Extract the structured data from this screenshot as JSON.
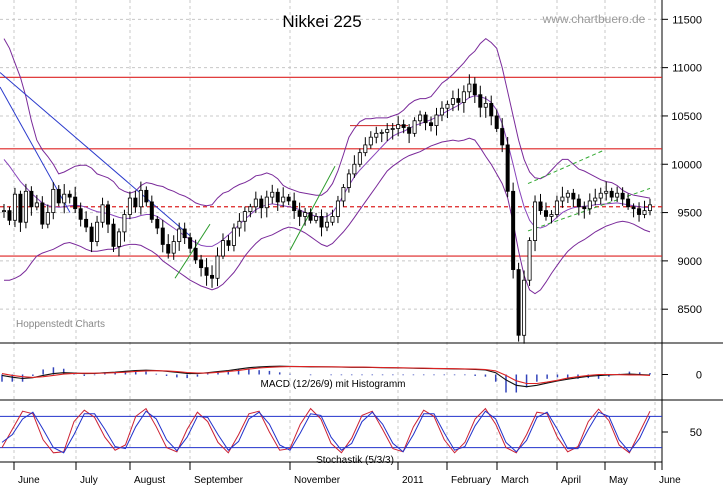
{
  "chart_data": [
    {
      "type": "candlestick",
      "title": "Nikkei 225",
      "watermark": "www.chartbuero.de",
      "source_label": "Hoppenstedt Charts",
      "ylim": [
        8150,
        11700
      ],
      "y_ticks": [
        8500,
        9000,
        9500,
        10000,
        10500,
        11000,
        11500
      ],
      "x_tick_labels": [
        "June",
        "July",
        "August",
        "September",
        "November",
        "2011",
        "February",
        "March",
        "April",
        "May",
        "June"
      ],
      "horizontal_levels": [
        {
          "value": 10900,
          "style": "solid",
          "color": "#dd2222"
        },
        {
          "value": 10160,
          "style": "solid",
          "color": "#dd2222"
        },
        {
          "value": 9560,
          "style": "dashed",
          "color": "#dd2222"
        },
        {
          "value": 9050,
          "style": "solid",
          "color": "#dd2222"
        }
      ],
      "price_series": [
        9520,
        9420,
        9690,
        9400,
        9720,
        9560,
        9600,
        9380,
        9500,
        9740,
        9600,
        9690,
        9660,
        9540,
        9430,
        9350,
        9200,
        9400,
        9580,
        9380,
        9150,
        9300,
        9480,
        9650,
        9560,
        9730,
        9610,
        9430,
        9340,
        9170,
        9080,
        9200,
        9330,
        9240,
        9130,
        9010,
        8930,
        8850,
        8820,
        9050,
        9210,
        9160,
        9340,
        9410,
        9510,
        9560,
        9640,
        9550,
        9660,
        9710,
        9610,
        9660,
        9620,
        9520,
        9460,
        9500,
        9420,
        9460,
        9350,
        9400,
        9460,
        9620,
        9760,
        9900,
        10000,
        10120,
        10200,
        10280,
        10320,
        10330,
        10360,
        10370,
        10410,
        10380,
        10320,
        10450,
        10510,
        10430,
        10400,
        10510,
        10580,
        10620,
        10680,
        10640,
        10750,
        10830,
        10720,
        10590,
        10630,
        10500,
        10370,
        10200,
        9720,
        8910,
        8230,
        8800,
        9210,
        9610,
        9520,
        9460,
        9480,
        9620,
        9660,
        9700,
        9640,
        9560,
        9540,
        9620,
        9650,
        9700,
        9720,
        9660,
        9700,
        9640,
        9560,
        9540,
        9480,
        9520,
        9580
      ],
      "bollinger": {
        "upper": [
          11300,
          11200,
          11050,
          10900,
          10700,
          10450,
          10250,
          10150,
          10080,
          10000,
          9900,
          9920,
          9950,
          9980,
          9990,
          9990,
          9960,
          9900,
          9880,
          9860,
          9820,
          9750,
          9720,
          9700,
          9720,
          9780,
          9810,
          9800,
          9780,
          9770,
          9740,
          9720,
          9690,
          9670,
          9640,
          9600,
          9580,
          9570,
          9580,
          9650,
          9700,
          9720,
          9760,
          9790,
          9810,
          9840,
          9880,
          9890,
          9910,
          9890,
          9850,
          9780,
          9750,
          9730,
          9710,
          9700,
          9690,
          9680,
          9680,
          9720,
          9800,
          9930,
          10100,
          10280,
          10370,
          10440,
          10470,
          10470,
          10480,
          10480,
          10480,
          10500,
          10520,
          10560,
          10620,
          10660,
          10680,
          10680,
          10700,
          10770,
          10840,
          10880,
          10930,
          10990,
          11050,
          11120,
          11170,
          11250,
          11300,
          11260,
          11200,
          11000,
          10750,
          10500,
          10250,
          10050,
          9920,
          9860,
          9850,
          9880,
          9940,
          10000,
          10050,
          10050,
          10000,
          9950,
          9930,
          9900,
          9870,
          9840,
          9820,
          9810,
          9780,
          9730,
          9700,
          9680,
          9670,
          9660,
          9650
        ],
        "middle": [
          10050,
          9980,
          9900,
          9820,
          9760,
          9700,
          9650,
          9600,
          9570,
          9560,
          9555,
          9560,
          9570,
          9575,
          9570,
          9555,
          9530,
          9510,
          9500,
          9490,
          9470,
          9450,
          9440,
          9440,
          9450,
          9470,
          9480,
          9480,
          9460,
          9420,
          9380,
          9340,
          9300,
          9260,
          9220,
          9190,
          9160,
          9150,
          9150,
          9180,
          9220,
          9270,
          9320,
          9380,
          9430,
          9480,
          9530,
          9560,
          9580,
          9590,
          9580,
          9570,
          9560,
          9550,
          9530,
          9500,
          9480,
          9460,
          9450,
          9460,
          9500,
          9580,
          9680,
          9780,
          9870,
          9940,
          10000,
          10060,
          10120,
          10180,
          10240,
          10290,
          10320,
          10340,
          10370,
          10400,
          10420,
          10440,
          10460,
          10490,
          10520,
          10550,
          10580,
          10610,
          10650,
          10690,
          10710,
          10700,
          10680,
          10640,
          10560,
          10420,
          10220,
          10000,
          9760,
          9560,
          9420,
          9350,
          9340,
          9360,
          9400,
          9450,
          9500,
          9530,
          9550,
          9560,
          9565,
          9570,
          9580,
          9585,
          9590,
          9595,
          9600,
          9590,
          9580,
          9570,
          9560,
          9555,
          9550
        ],
        "lower": [
          8800,
          8800,
          8820,
          8850,
          8900,
          8980,
          9050,
          9080,
          9100,
          9120,
          9150,
          9180,
          9190,
          9170,
          9150,
          9120,
          9100,
          9100,
          9110,
          9120,
          9120,
          9140,
          9160,
          9170,
          9170,
          9160,
          9130,
          9100,
          9060,
          9000,
          8960,
          8920,
          8880,
          8840,
          8800,
          8770,
          8740,
          8720,
          8700,
          8720,
          8760,
          8820,
          8880,
          8960,
          9050,
          9120,
          9180,
          9230,
          9250,
          9270,
          9300,
          9330,
          9350,
          9340,
          9320,
          9290,
          9250,
          9210,
          9170,
          9150,
          9180,
          9240,
          9300,
          9370,
          9450,
          9530,
          9610,
          9690,
          9770,
          9850,
          9930,
          9980,
          10020,
          10060,
          10090,
          10110,
          10130,
          10160,
          10190,
          10210,
          10230,
          10240,
          10250,
          10240,
          10250,
          10270,
          10250,
          10170,
          10080,
          10000,
          9900,
          9800,
          9650,
          9400,
          9100,
          8850,
          8700,
          8660,
          8700,
          8780,
          8870,
          8950,
          9030,
          9100,
          9150,
          9190,
          9220,
          9260,
          9300,
          9330,
          9360,
          9380,
          9400,
          9410,
          9400,
          9380,
          9350,
          9320,
          9300
        ]
      }
    },
    {
      "type": "line",
      "title": "MACD (12/26/9) mit Histogramm",
      "ylim": [
        -1,
        1
      ],
      "y_ticks": [
        0
      ],
      "series": [
        {
          "color": "#111111",
          "values": [
            -0.05,
            -0.15,
            -0.22,
            -0.18,
            -0.05,
            0.05,
            0.1,
            0.08,
            0.05,
            0.06,
            0.1,
            0.13,
            0.18,
            0.22,
            0.24,
            0.22,
            0.18,
            0.12,
            0.06,
            0.05,
            0.1,
            0.16,
            0.22,
            0.3,
            0.38,
            0.42,
            0.45,
            0.46,
            0.45,
            0.44,
            0.43,
            0.43,
            0.42,
            0.41,
            0.4,
            0.4,
            0.39,
            0.38,
            0.37,
            0.36,
            0.35,
            0.34,
            0.33,
            0.32,
            0.31,
            0.3,
            0.28,
            0.25,
            0.1,
            -0.3,
            -0.6,
            -0.68,
            -0.6,
            -0.48,
            -0.36,
            -0.26,
            -0.18,
            -0.1,
            -0.06,
            -0.03,
            0.0,
            0.02,
            0.0,
            -0.03
          ]
        },
        {
          "color": "#dd2222",
          "values": [
            0.05,
            -0.05,
            -0.12,
            -0.16,
            -0.12,
            -0.05,
            0.02,
            0.06,
            0.07,
            0.07,
            0.08,
            0.1,
            0.13,
            0.17,
            0.2,
            0.21,
            0.2,
            0.16,
            0.11,
            0.08,
            0.08,
            0.12,
            0.17,
            0.23,
            0.3,
            0.36,
            0.4,
            0.43,
            0.44,
            0.44,
            0.44,
            0.43,
            0.43,
            0.42,
            0.41,
            0.41,
            0.4,
            0.39,
            0.38,
            0.37,
            0.36,
            0.35,
            0.34,
            0.33,
            0.32,
            0.31,
            0.3,
            0.28,
            0.2,
            -0.05,
            -0.35,
            -0.5,
            -0.5,
            -0.42,
            -0.32,
            -0.2,
            -0.12,
            -0.05,
            0.0,
            0.0,
            -0.01,
            -0.02,
            -0.03,
            -0.05
          ]
        }
      ]
    },
    {
      "type": "line",
      "title": "Stochastik (5/3/3)",
      "ylim": [
        0,
        100
      ],
      "y_ticks": [
        50
      ],
      "horizontal_levels": [
        80,
        20
      ],
      "series": [
        {
          "color": "#cc2233",
          "values": [
            20,
            55,
            90,
            85,
            35,
            10,
            12,
            70,
            92,
            78,
            40,
            15,
            25,
            80,
            95,
            60,
            20,
            12,
            55,
            88,
            70,
            30,
            10,
            45,
            85,
            90,
            50,
            15,
            18,
            65,
            95,
            75,
            28,
            10,
            38,
            82,
            90,
            55,
            18,
            12,
            60,
            92,
            80,
            35,
            10,
            30,
            75,
            95,
            65,
            20,
            10,
            45,
            88,
            85,
            40,
            12,
            22,
            70,
            94,
            72,
            25,
            10,
            50,
            90
          ]
        },
        {
          "color": "#2233cc",
          "values": [
            30,
            45,
            75,
            88,
            55,
            20,
            10,
            45,
            85,
            85,
            55,
            22,
            18,
            60,
            90,
            75,
            35,
            14,
            40,
            80,
            78,
            45,
            15,
            32,
            75,
            88,
            65,
            25,
            15,
            48,
            85,
            82,
            40,
            15,
            28,
            70,
            88,
            65,
            28,
            12,
            45,
            85,
            85,
            48,
            15,
            22,
            62,
            90,
            75,
            30,
            12,
            34,
            78,
            88,
            55,
            18,
            18,
            55,
            88,
            80,
            35,
            12,
            38,
            80
          ]
        }
      ]
    }
  ]
}
